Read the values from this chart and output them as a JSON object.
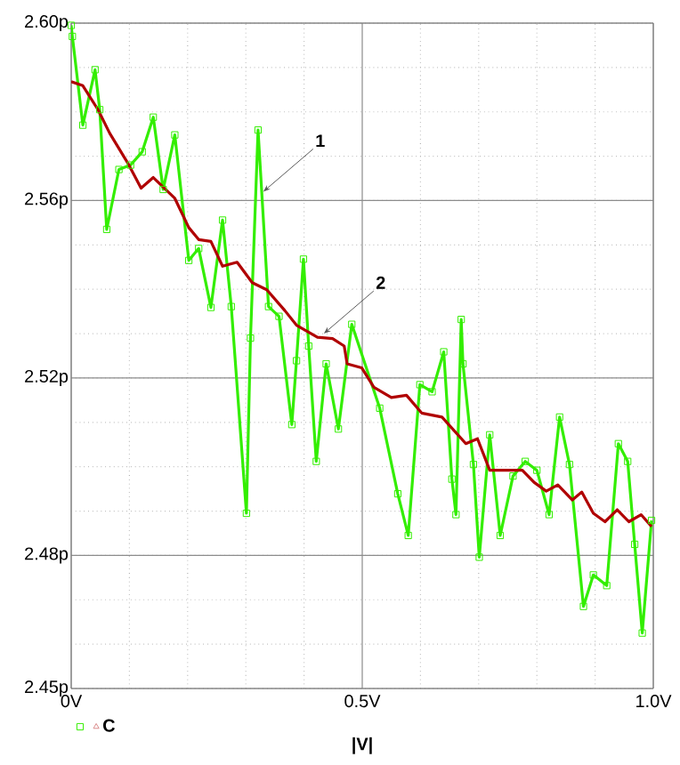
{
  "chart_data": {
    "type": "line",
    "xlabel": "|V|",
    "x": [
      0,
      0.002,
      0.02,
      0.041,
      0.049,
      0.061,
      0.082,
      0.102,
      0.122,
      0.141,
      0.158,
      0.178,
      0.202,
      0.219,
      0.24,
      0.26,
      0.275,
      0.301,
      0.308,
      0.321,
      0.339,
      0.357,
      0.379,
      0.387,
      0.399,
      0.408,
      0.421,
      0.438,
      0.459,
      0.482,
      0.53,
      0.561,
      0.579,
      0.599,
      0.62,
      0.64,
      0.654,
      0.661,
      0.67,
      0.673,
      0.691,
      0.701,
      0.719,
      0.737,
      0.759,
      0.78,
      0.8,
      0.821,
      0.839,
      0.856,
      0.88,
      0.897,
      0.92,
      0.94,
      0.956,
      0.968,
      0.981,
      0.997
    ],
    "series": [
      {
        "name": "C",
        "color": "#33ee00",
        "marker": "square",
        "values": [
          2.5995,
          2.597,
          2.577,
          2.5895,
          2.5805,
          2.5535,
          2.567,
          2.568,
          2.571,
          2.5788,
          2.5625,
          2.5748,
          2.5465,
          2.5492,
          2.5359,
          2.5556,
          2.5361,
          2.4895,
          2.529,
          2.5759,
          2.5361,
          2.5339,
          2.5095,
          2.5239,
          2.5468,
          2.5272,
          2.5012,
          2.5232,
          2.5085,
          2.5321,
          2.5132,
          2.4939,
          2.4845,
          2.5185,
          2.5169,
          2.5259,
          2.4972,
          2.4892,
          2.5332,
          2.5232,
          2.5005,
          2.4796,
          2.5072,
          2.4845,
          2.4979,
          2.5012,
          2.4992,
          2.4892,
          2.5112,
          2.5005,
          2.4685,
          2.4756,
          2.4732,
          2.5052,
          2.5012,
          2.4825,
          2.4625,
          2.4879
        ]
      },
      {
        "color": "#b00000",
        "x": [
          0,
          0.02,
          0.046,
          0.066,
          0.097,
          0.12,
          0.141,
          0.178,
          0.202,
          0.219,
          0.24,
          0.26,
          0.285,
          0.311,
          0.336,
          0.367,
          0.387,
          0.423,
          0.449,
          0.469,
          0.474,
          0.499,
          0.52,
          0.55,
          0.576,
          0.602,
          0.637,
          0.678,
          0.698,
          0.719,
          0.775,
          0.795,
          0.816,
          0.836,
          0.861,
          0.877,
          0.897,
          0.917,
          0.938,
          0.958,
          0.979,
          0.997
        ],
        "values": [
          2.5868,
          2.5859,
          2.5805,
          2.5752,
          2.5685,
          2.5628,
          2.5652,
          2.5605,
          2.5539,
          2.5512,
          2.5508,
          2.5452,
          2.5461,
          2.5415,
          2.5399,
          2.5352,
          2.5319,
          2.5292,
          2.5289,
          2.5272,
          2.5232,
          2.5223,
          2.5179,
          2.5156,
          2.5161,
          2.5121,
          2.5112,
          2.5052,
          2.5063,
          2.4992,
          2.4992,
          2.4965,
          2.4945,
          2.4959,
          2.4925,
          2.4943,
          2.4895,
          2.4876,
          2.4903,
          2.4876,
          2.4892,
          2.4865
        ]
      }
    ],
    "xlim": [
      0,
      1
    ],
    "xticks": [
      {
        "value": 0,
        "label": "0V"
      },
      {
        "value": 0.5,
        "label": "0.5V"
      },
      {
        "value": 1,
        "label": "1.0V"
      }
    ],
    "ylim": [
      2.45,
      2.6
    ],
    "yticks": [
      {
        "value": 2.45,
        "label": "2.45p"
      },
      {
        "value": 2.48,
        "label": "2.48p"
      },
      {
        "value": 2.52,
        "label": "2.52p"
      },
      {
        "value": 2.56,
        "label": "2.56p"
      },
      {
        "value": 2.6,
        "label": "2.60p"
      }
    ],
    "grid": true,
    "legend": "bottom left",
    "annotations": [
      {
        "text": "1",
        "x": 0.33,
        "y": 2.562
      },
      {
        "text": "2",
        "x": 0.434,
        "y": 2.53
      }
    ]
  }
}
